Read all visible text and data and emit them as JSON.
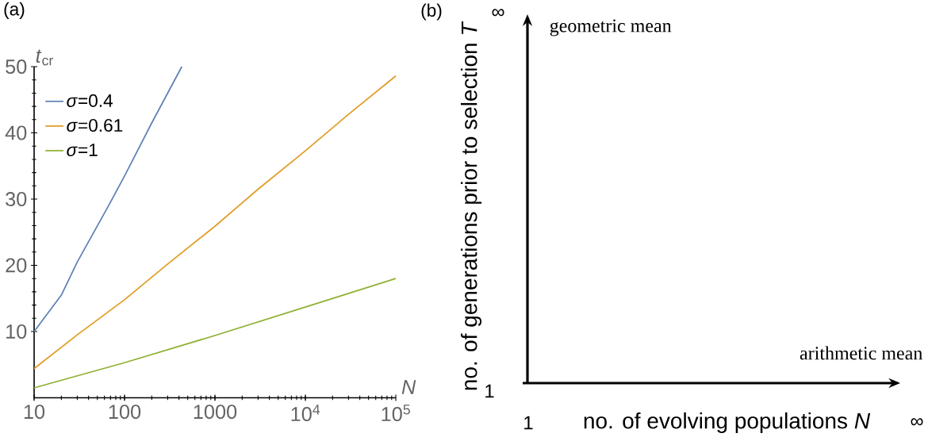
{
  "chart_data": [
    {
      "type": "line",
      "title": "(a)",
      "xlabel": "*N*",
      "ylabel": "*t*$_{cr}$",
      "log": "x",
      "legend": "top left",
      "xlim": [
        10,
        100000
      ],
      "ylim": [
        0,
        50
      ],
      "xticks": [
        10,
        100,
        1000,
        {
          "value": 10000,
          "label": "10$^{4}$"
        },
        {
          "value": 100000,
          "label": "10$^{5}$"
        }
      ],
      "yticks": [
        10,
        20,
        30,
        40,
        50
      ],
      "series": [
        {
          "name": "*σ*=0.4",
          "color": "#5e81b5",
          "x": [
            10,
            20,
            30,
            66,
            100,
            200,
            430
          ],
          "values": [
            10,
            15.5,
            20.5,
            28.9,
            33.5,
            41.5,
            50
          ]
        },
        {
          "name": "*σ*=0.61",
          "color": "#e19c24",
          "x": [
            10,
            30,
            100,
            300,
            1000,
            3000,
            10000,
            30000,
            100000
          ],
          "values": [
            4.4,
            9.5,
            14.8,
            20.2,
            25.9,
            31.5,
            37.3,
            42.8,
            48.6
          ]
        },
        {
          "name": "*σ*=1",
          "color": "#8fb032",
          "x": [
            10,
            100,
            1000,
            10000,
            100000
          ],
          "values": [
            1.5,
            5.3,
            9.4,
            13.7,
            18.0
          ]
        }
      ]
    },
    {
      "type": "other",
      "title": "(b)",
      "xlabel": "no. of evolving populations *N*",
      "ylabel": "no. of generations prior to selection *T*",
      "annotations": [
        "geometric mean",
        "arithmetic mean",
        "1",
        "∞",
        "1",
        "∞"
      ]
    }
  ]
}
